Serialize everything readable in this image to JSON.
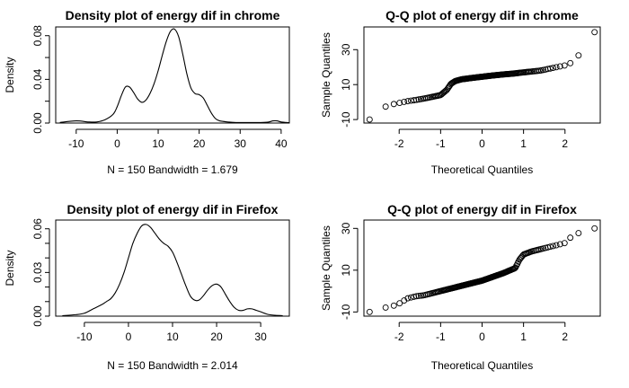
{
  "chart_data": [
    {
      "id": "density-chrome",
      "type": "line",
      "title": "Density plot of energy dif in chrome",
      "xlabel": "N = 150   Bandwidth = 1.679",
      "ylabel": "Density",
      "xlim": [
        -15,
        42
      ],
      "ylim": [
        0,
        0.088
      ],
      "xticks": [
        -10,
        0,
        10,
        20,
        30,
        40
      ],
      "xtick_labels": [
        "-10",
        "0",
        "10",
        "20",
        "30",
        "40"
      ],
      "yticks": [
        0.0,
        0.02,
        0.04,
        0.06,
        0.08
      ],
      "ytick_labels": [
        "0.00",
        "",
        "0.04",
        "",
        "0.08"
      ],
      "grid": false,
      "x": [
        -14,
        -10,
        -7,
        -5,
        -3,
        -1,
        0,
        1,
        2,
        3,
        4,
        5,
        6,
        7,
        8,
        9,
        10,
        11,
        12,
        13,
        14,
        15,
        16,
        17,
        18,
        19,
        20,
        21,
        22,
        23,
        24,
        25,
        27,
        29,
        31,
        33,
        35,
        37,
        38,
        39,
        40,
        42
      ],
      "y": [
        0.0005,
        0.002,
        0.001,
        0.001,
        0.003,
        0.008,
        0.015,
        0.025,
        0.033,
        0.033,
        0.028,
        0.022,
        0.019,
        0.021,
        0.027,
        0.036,
        0.048,
        0.062,
        0.075,
        0.084,
        0.086,
        0.079,
        0.063,
        0.045,
        0.032,
        0.027,
        0.026,
        0.023,
        0.016,
        0.009,
        0.004,
        0.002,
        0.001,
        0.0005,
        0.0005,
        0.0005,
        0.0005,
        0.001,
        0.002,
        0.002,
        0.001,
        0.0003
      ]
    },
    {
      "id": "qq-chrome",
      "type": "scatter",
      "title": "Q-Q plot of energy dif in chrome",
      "xlabel": "Theoretical Quantiles",
      "ylabel": "Sample Quantiles",
      "xlim": [
        -2.85,
        2.85
      ],
      "ylim": [
        -12,
        43
      ],
      "xticks": [
        -2,
        -1,
        0,
        1,
        2
      ],
      "xtick_labels": [
        "-2",
        "-1",
        "0",
        "1",
        "2"
      ],
      "yticks": [
        -10,
        10,
        30
      ],
      "ytick_labels": [
        "-10",
        "10",
        "30"
      ],
      "grid": false,
      "n": 150,
      "quantile_knots": {
        "q": [
          -2.71,
          -2.37,
          -2.2,
          -2.0,
          -1.8,
          -1.6,
          -1.4,
          -1.2,
          -1.0,
          -0.85,
          -0.75,
          -0.65,
          -0.5,
          -0.25,
          0.0,
          0.25,
          0.5,
          0.75,
          1.0,
          1.2,
          1.4,
          1.6,
          1.8,
          2.0,
          2.2,
          2.37,
          2.71
        ],
        "v": [
          -10,
          -3,
          -1.5,
          -0.5,
          0.5,
          1.2,
          2.0,
          3.0,
          4.0,
          7.0,
          10.5,
          12.0,
          13.0,
          13.8,
          14.5,
          15.2,
          15.8,
          16.3,
          17.0,
          17.5,
          18.0,
          19.0,
          20.0,
          21.0,
          23.0,
          28.0,
          40.0
        ]
      }
    },
    {
      "id": "density-firefox",
      "type": "line",
      "title": "Density plot of energy dif in Firefox",
      "xlabel": "N = 150   Bandwidth = 2.014",
      "ylabel": "Density",
      "xlim": [
        -16.5,
        36.5
      ],
      "ylim": [
        0,
        0.066
      ],
      "xticks": [
        -10,
        0,
        10,
        20,
        30
      ],
      "xtick_labels": [
        "-10",
        "0",
        "10",
        "20",
        "30"
      ],
      "yticks": [
        0.0,
        0.01,
        0.02,
        0.03,
        0.04,
        0.05,
        0.06
      ],
      "ytick_labels": [
        "0.00",
        "",
        "",
        "0.03",
        "",
        "",
        "0.06"
      ],
      "grid": false,
      "x": [
        -15,
        -12,
        -10,
        -8,
        -6,
        -5,
        -4,
        -3,
        -2,
        -1,
        0,
        1,
        2,
        3,
        4,
        5,
        6,
        7,
        8,
        9,
        10,
        11,
        12,
        13,
        14,
        15,
        16,
        17,
        18,
        19,
        20,
        21,
        22,
        23,
        24,
        25,
        26,
        27,
        28,
        29,
        30,
        32,
        35
      ],
      "y": [
        0.0003,
        0.001,
        0.002,
        0.005,
        0.008,
        0.01,
        0.012,
        0.016,
        0.022,
        0.03,
        0.04,
        0.05,
        0.057,
        0.062,
        0.063,
        0.061,
        0.057,
        0.053,
        0.05,
        0.048,
        0.044,
        0.037,
        0.029,
        0.021,
        0.014,
        0.011,
        0.011,
        0.014,
        0.018,
        0.021,
        0.022,
        0.02,
        0.015,
        0.01,
        0.006,
        0.004,
        0.004,
        0.005,
        0.005,
        0.004,
        0.003,
        0.001,
        0.0003
      ]
    },
    {
      "id": "qq-firefox",
      "type": "scatter",
      "title": "Q-Q plot of energy dif in Firefox",
      "xlabel": "Theoretical Quantiles",
      "ylabel": "Sample Quantiles",
      "xlim": [
        -2.85,
        2.85
      ],
      "ylim": [
        -12,
        34
      ],
      "xticks": [
        -2,
        -1,
        0,
        1,
        2
      ],
      "xtick_labels": [
        "-2",
        "-1",
        "0",
        "1",
        "2"
      ],
      "yticks": [
        -10,
        10,
        30
      ],
      "ytick_labels": [
        "-10",
        "10",
        "30"
      ],
      "grid": false,
      "n": 150,
      "quantile_knots": {
        "q": [
          -2.71,
          -2.37,
          -2.2,
          -2.0,
          -1.8,
          -1.6,
          -1.4,
          -1.2,
          -1.0,
          -0.5,
          0.0,
          0.5,
          0.8,
          0.9,
          1.0,
          1.2,
          1.4,
          1.6,
          1.8,
          2.0,
          2.2,
          2.37,
          2.71
        ],
        "v": [
          -10,
          -8,
          -7.5,
          -6,
          -3.5,
          -2.5,
          -2,
          -1,
          0,
          2.5,
          5,
          8.5,
          11,
          15,
          17.5,
          19,
          20,
          21,
          22,
          23,
          27,
          28,
          30
        ]
      }
    }
  ]
}
